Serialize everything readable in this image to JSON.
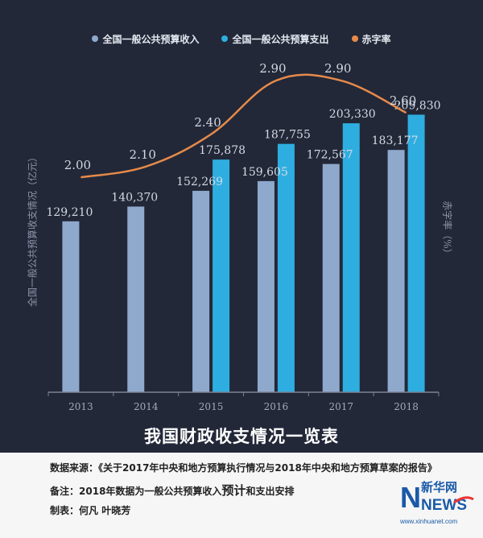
{
  "chart_data": {
    "type": "bar+line",
    "title": "我国财政收支情况一览表",
    "categories": [
      "2013",
      "2014",
      "2015",
      "2016",
      "2017",
      "2018"
    ],
    "series": [
      {
        "name": "全国一般公共预算收入",
        "type": "bar",
        "color": "#8fa9cc",
        "values": [
          129210,
          140370,
          152269,
          159605,
          172567,
          183177
        ],
        "labels": [
          "129,210",
          "140,370",
          "152,269",
          "159,605",
          "172,567",
          "183,177"
        ]
      },
      {
        "name": "全国一般公共预算支出",
        "type": "bar",
        "color": "#2eaee0",
        "values": [
          null,
          null,
          175878,
          187755,
          203330,
          209830
        ],
        "labels": [
          "",
          "",
          "175,878",
          "187,755",
          "203,330",
          "209,830"
        ]
      },
      {
        "name": "赤字率",
        "type": "line",
        "color": "#e78a4a",
        "values": [
          2.0,
          2.1,
          2.4,
          2.9,
          2.9,
          2.6
        ],
        "labels": [
          "2.00",
          "2.10",
          "2.40",
          "2.90",
          "2.90",
          "2.60"
        ]
      }
    ],
    "ylabel_left": "全国一般公共预算收支情况（亿元）",
    "ylabel_right": "赤字率（%）",
    "ylim_left": [
      0,
      260000
    ],
    "ylim_right": [
      0,
      3.2
    ],
    "grid": false,
    "legend_position": "top"
  },
  "legend": [
    {
      "label": "全国一般公共预算收入",
      "color": "#8fa9cc"
    },
    {
      "label": "全国一般公共预算支出",
      "color": "#2eaee0"
    },
    {
      "label": "赤字率",
      "color": "#e78a4a"
    }
  ],
  "notes": {
    "source_label": "数据来源：",
    "source_text": "《关于2017年中央和地方预算执行情况与2018年中央和地方预算草案的报告》",
    "remark_label": "备注：",
    "remark_text_a": "2018年数据为一般公共预算收入",
    "remark_text_big": "预计",
    "remark_text_b": "和支出安排",
    "credit_label": "制表：",
    "credit_text": "何凡 叶晓芳"
  },
  "logo": {
    "brand_cn": "新华网",
    "brand_en": "NEWS",
    "url_text": "www.xinhuanet.com"
  }
}
